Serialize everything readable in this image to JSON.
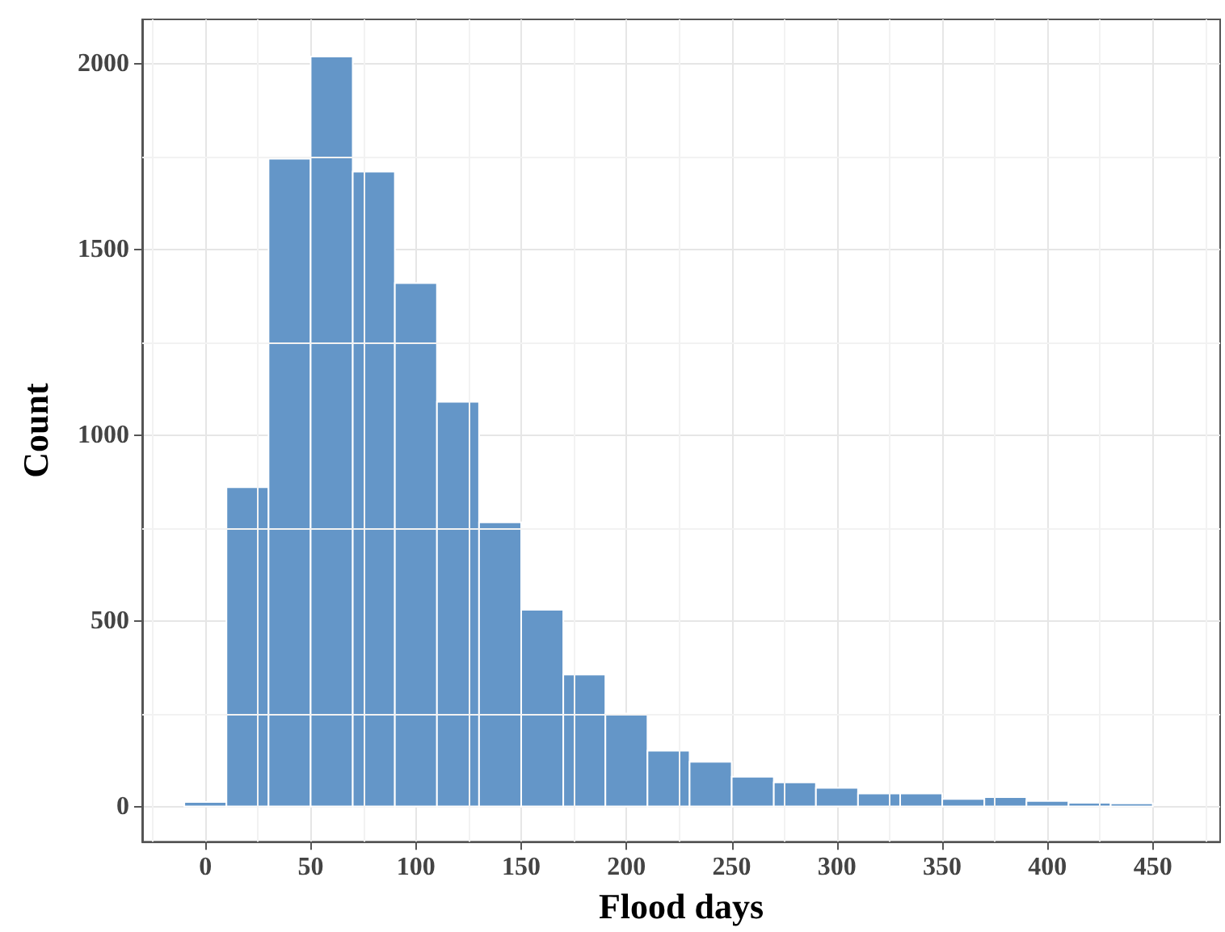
{
  "chart_data": {
    "type": "histogram",
    "xlabel": "Flood days",
    "ylabel": "Count",
    "bins": [
      -10,
      10,
      30,
      50,
      70,
      90,
      110,
      130,
      150,
      170,
      190,
      210,
      230,
      250,
      270,
      290,
      310,
      330,
      350,
      370,
      390,
      410,
      430,
      450
    ],
    "values": [
      12,
      860,
      1745,
      2020,
      1710,
      1410,
      1090,
      765,
      530,
      355,
      250,
      150,
      120,
      80,
      65,
      50,
      35,
      35,
      20,
      25,
      15,
      10,
      8
    ],
    "color": "#6496c8",
    "xlim": [
      -30,
      482
    ],
    "xticks": [
      0,
      50,
      100,
      150,
      200,
      250,
      300,
      350,
      400,
      450
    ],
    "ylim": [
      -95,
      2120
    ],
    "yticks": [
      0,
      500,
      1000,
      1500,
      2000
    ],
    "grid": true
  }
}
